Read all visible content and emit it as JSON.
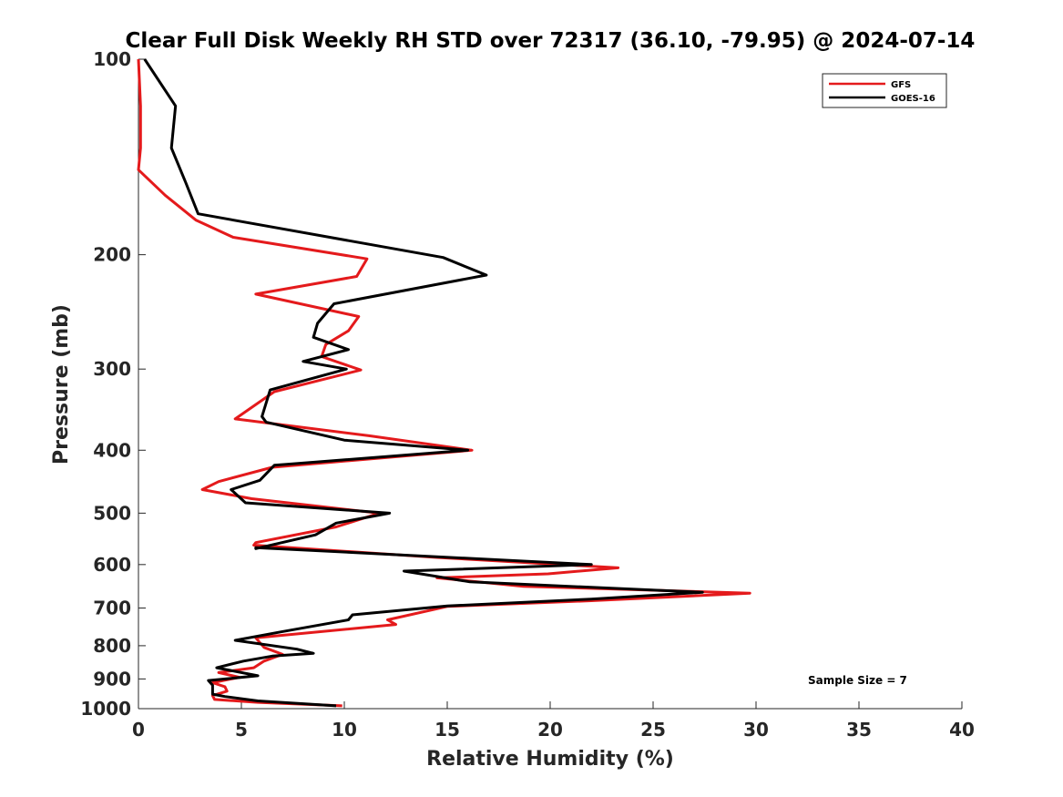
{
  "chart_data": {
    "type": "line",
    "title": "Clear Full Disk Weekly RH STD over 72317 (36.10, -79.95) @ 2024-07-14",
    "xlabel": "Relative Humidity (%)",
    "ylabel": "Pressure (mb)",
    "xlim": [
      0,
      40
    ],
    "ylim": [
      100,
      1000
    ],
    "yscale": "log",
    "y_reversed": true,
    "xticks": [
      0,
      5,
      10,
      15,
      20,
      25,
      30,
      35,
      40
    ],
    "yticks": [
      100,
      200,
      300,
      400,
      500,
      600,
      700,
      800,
      900,
      1000
    ],
    "grid": false,
    "legend_position": "top-right",
    "annotation": "Sample Size = 7",
    "series": [
      {
        "name": "GFS",
        "color": "#e41a1c",
        "x": [
          0.0,
          0.1,
          0.1,
          0.0,
          1.3,
          2.8,
          4.6,
          11.1,
          10.6,
          5.7,
          10.7,
          10.2,
          9.1,
          8.9,
          10.8,
          6.6,
          4.7,
          11.2,
          16.2,
          6.5,
          3.9,
          3.1,
          5.5,
          11.7,
          9.6,
          5.7,
          5.6,
          14.5,
          23.3,
          19.9,
          14.5,
          18.7,
          29.7,
          22.0,
          15.0,
          12.1,
          12.5,
          5.7,
          6.1,
          7.0,
          6.1,
          5.6,
          3.9,
          4.9,
          3.6,
          4.2,
          4.3,
          3.6,
          3.7,
          5.8,
          9.9
        ],
        "y": [
          100,
          118,
          137,
          148,
          162,
          177,
          188,
          203,
          216,
          230,
          249,
          262,
          275,
          287,
          301,
          325,
          358,
          380,
          400,
          425,
          447,
          460,
          475,
          500,
          525,
          555,
          560,
          585,
          607,
          620,
          629,
          648,
          664,
          682,
          696,
          730,
          742,
          778,
          805,
          825,
          845,
          865,
          880,
          895,
          912,
          925,
          940,
          955,
          968,
          978,
          990
        ]
      },
      {
        "name": "GOES-16",
        "color": "#000000",
        "x": [
          0.3,
          1.8,
          1.6,
          2.3,
          2.9,
          14.8,
          16.9,
          9.5,
          8.7,
          8.5,
          10.2,
          8.0,
          10.1,
          6.4,
          6.0,
          6.2,
          10.0,
          16.0,
          6.6,
          5.9,
          4.5,
          5.2,
          12.2,
          9.6,
          8.6,
          5.7,
          5.7,
          22.0,
          12.9,
          16.1,
          27.4,
          22.0,
          15.0,
          10.4,
          10.2,
          6.9,
          4.7,
          7.7,
          8.5,
          6.5,
          5.1,
          3.8,
          5.8,
          3.4,
          3.6,
          3.6,
          3.6,
          4.2,
          5.8,
          9.6
        ],
        "y": [
          100,
          118,
          137,
          155,
          173,
          202,
          215,
          238,
          255,
          268,
          280,
          292,
          300,
          323,
          355,
          362,
          386,
          400,
          422,
          445,
          460,
          482,
          500,
          518,
          540,
          567,
          565,
          600,
          614,
          638,
          662,
          678,
          695,
          717,
          730,
          762,
          785,
          810,
          822,
          830,
          845,
          865,
          890,
          905,
          920,
          935,
          950,
          958,
          973,
          990
        ]
      }
    ]
  }
}
